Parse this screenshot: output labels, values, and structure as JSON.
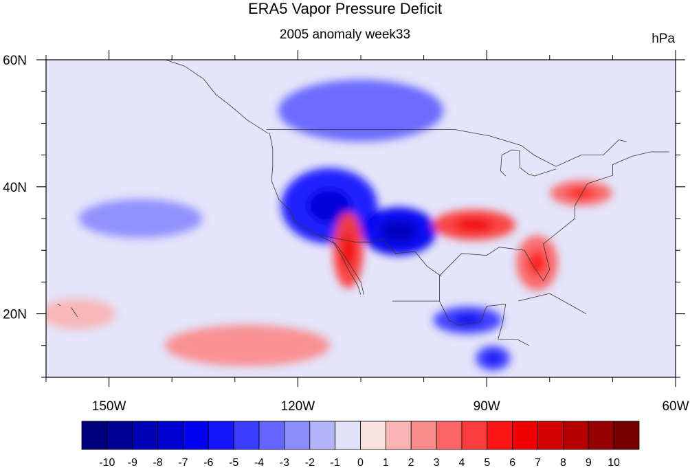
{
  "title": "ERA5 Vapor Pressure Deficit",
  "subtitle": "2005 anomaly week33",
  "units": "hPa",
  "colors": {
    "frame": "#000000",
    "coast": "#333333",
    "zero": "#ffffff"
  },
  "chart_data": {
    "type": "heatmap",
    "title": "ERA5 Vapor Pressure Deficit",
    "subtitle": "2005 anomaly week33",
    "units": "hPa",
    "x_axis": {
      "range": [
        -160,
        -60
      ],
      "ticks": [
        -150,
        -120,
        -90,
        -60
      ],
      "tick_labels": [
        "150W",
        "120W",
        "90W",
        "60W"
      ]
    },
    "y_axis": {
      "range": [
        10,
        60
      ],
      "ticks": [
        20,
        40,
        60
      ],
      "tick_labels": [
        "20N",
        "40N",
        "60N"
      ]
    },
    "colorbar": {
      "levels": [
        "-10",
        "-9",
        "-8",
        "-7",
        "-6",
        "-5",
        "-4",
        "-3",
        "-2",
        "-1",
        "0",
        "1",
        "2",
        "3",
        "4",
        "5",
        "6",
        "7",
        "8",
        "9",
        "10"
      ],
      "colors": [
        "#00007d",
        "#000096",
        "#0000b4",
        "#0000d2",
        "#0000f0",
        "#1414ff",
        "#3c3cff",
        "#6464ff",
        "#8c8cff",
        "#b4b4fa",
        "#e1e1fa",
        "#fae1e1",
        "#fab4b4",
        "#fa8c8c",
        "#fa6464",
        "#fa3c3c",
        "#ff1414",
        "#f00000",
        "#d20000",
        "#b40000",
        "#960000",
        "#780000"
      ]
    },
    "anomaly_features": [
      {
        "lon": -155,
        "lat": 20,
        "value": 2
      },
      {
        "lon": -128,
        "lat": 15,
        "value": 3
      },
      {
        "lon": -145,
        "lat": 35,
        "value": -2
      },
      {
        "lon": -115,
        "lat": 37,
        "value": -5
      },
      {
        "lon": -104,
        "lat": 33,
        "value": -6
      },
      {
        "lon": -110,
        "lat": 52,
        "value": -3
      },
      {
        "lon": -112,
        "lat": 30,
        "value": 5
      },
      {
        "lon": -92,
        "lat": 34,
        "value": 5
      },
      {
        "lon": -82,
        "lat": 28,
        "value": 4
      },
      {
        "lon": -75,
        "lat": 39,
        "value": 4
      },
      {
        "lon": -93,
        "lat": 19,
        "value": -4
      },
      {
        "lon": -89,
        "lat": 13,
        "value": -4
      }
    ]
  }
}
